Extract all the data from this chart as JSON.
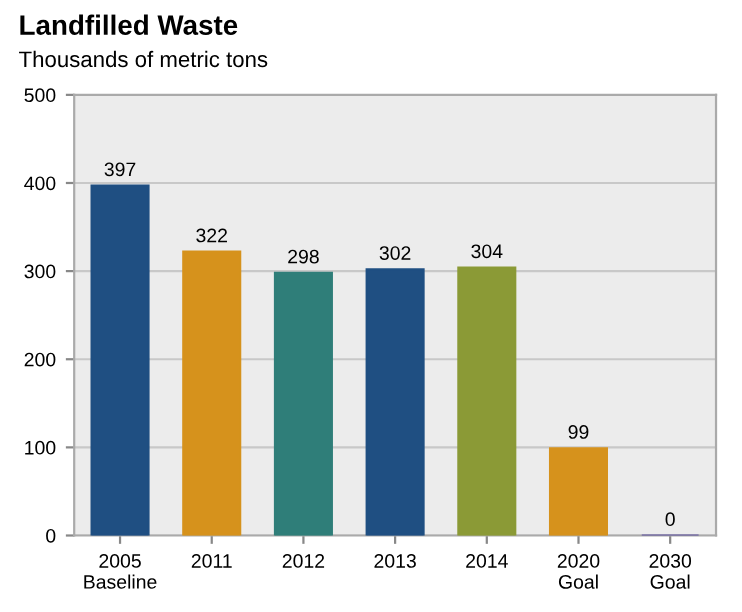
{
  "chart_data": {
    "type": "bar",
    "title": "Landfilled Waste",
    "subtitle": "Thousands of metric tons",
    "categories": [
      "2005\nBaseline",
      "2011",
      "2012",
      "2013",
      "2014",
      "2020\nGoal",
      "2030\nGoal"
    ],
    "values": [
      397,
      322,
      298,
      302,
      304,
      99,
      0
    ],
    "colors": [
      "#1f4f82",
      "#d6921c",
      "#2f7e79",
      "#1f4f82",
      "#8b9a36",
      "#d6921c",
      "#5b4f9e"
    ],
    "ylim": [
      0,
      500
    ],
    "yticks": [
      0,
      100,
      200,
      300,
      400,
      500
    ],
    "grid": "y",
    "data_labels": true
  }
}
